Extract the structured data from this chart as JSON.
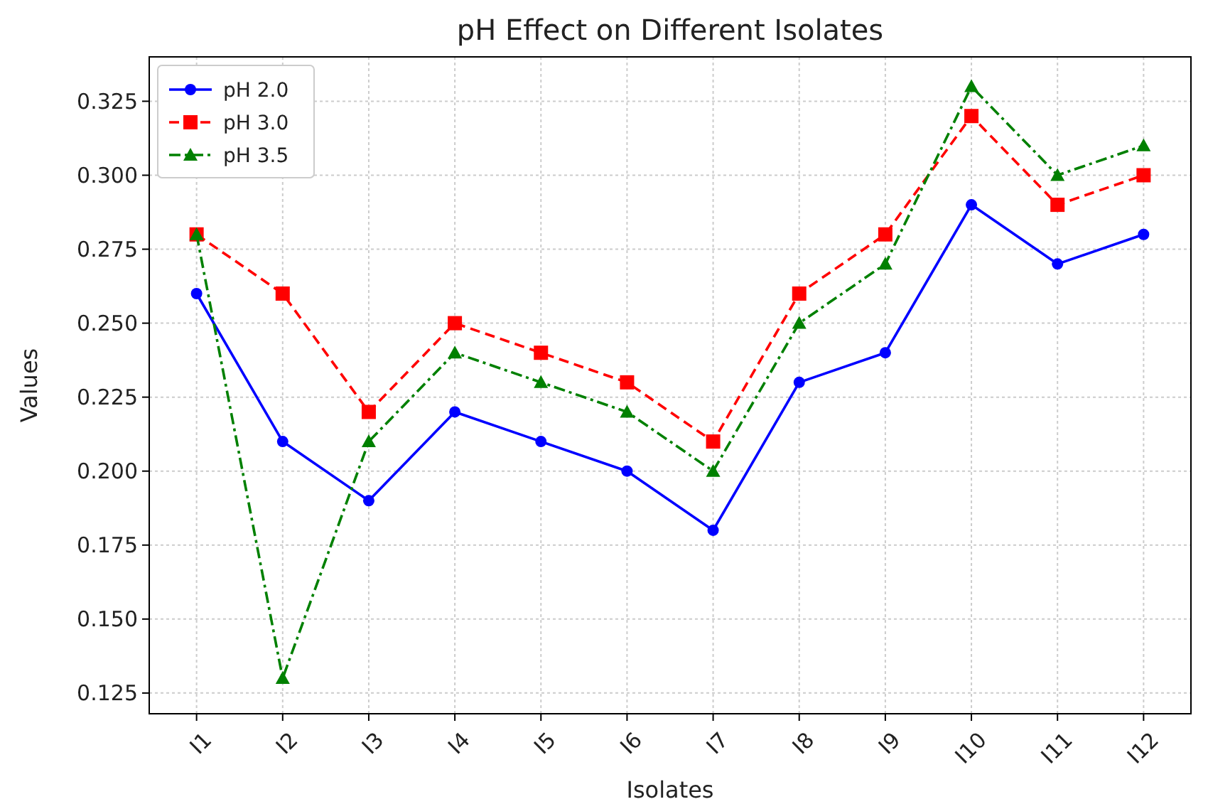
{
  "chart_data": {
    "type": "line",
    "title": "pH Effect on Different Isolates",
    "xlabel": "Isolates",
    "ylabel": "Values",
    "categories": [
      "I1",
      "I2",
      "I3",
      "I4",
      "I5",
      "I6",
      "I7",
      "I8",
      "I9",
      "I10",
      "I11",
      "I12"
    ],
    "series": [
      {
        "name": "pH 2.0",
        "color": "#0000ff",
        "marker": "circle",
        "line_style": "solid",
        "values": [
          0.26,
          0.21,
          0.19,
          0.22,
          0.21,
          0.2,
          0.18,
          0.23,
          0.24,
          0.29,
          0.27,
          0.28
        ]
      },
      {
        "name": "pH 3.0",
        "color": "#ff0000",
        "marker": "square",
        "line_style": "dashed",
        "values": [
          0.28,
          0.26,
          0.22,
          0.25,
          0.24,
          0.23,
          0.21,
          0.26,
          0.28,
          0.32,
          0.29,
          0.3
        ]
      },
      {
        "name": "pH 3.5",
        "color": "#008000",
        "marker": "triangle",
        "line_style": "dashdot",
        "values": [
          0.28,
          0.13,
          0.21,
          0.24,
          0.23,
          0.22,
          0.2,
          0.25,
          0.27,
          0.33,
          0.3,
          0.31
        ]
      }
    ],
    "ylim": [
      0.118,
      0.34
    ],
    "yticks": [
      0.125,
      {
        "value": 0.15,
        "label": "0.150"
      },
      0.175,
      {
        "value": 0.2,
        "label": "0.200"
      },
      0.225,
      {
        "value": 0.25,
        "label": "0.250"
      },
      0.275,
      {
        "value": 0.3,
        "label": "0.300"
      },
      0.325
    ],
    "grid": true,
    "legend": "top left"
  }
}
